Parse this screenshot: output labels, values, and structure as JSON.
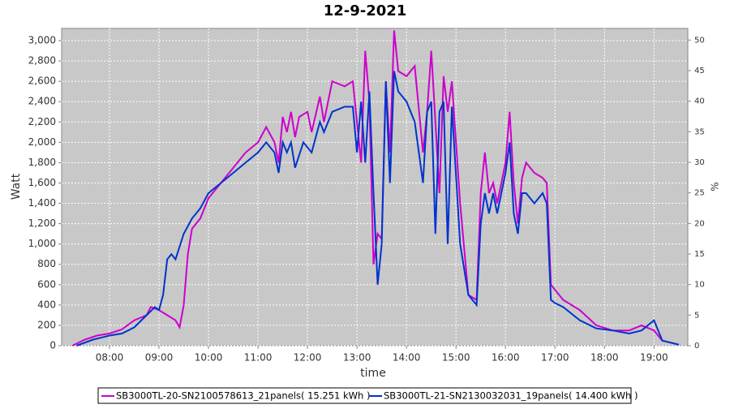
{
  "chart_data": {
    "type": "line",
    "title": "12-9-2021",
    "xlabel": "time",
    "ylabel": "Watt",
    "y2label": "%",
    "xlim": [
      "07:02",
      "19:41"
    ],
    "xticks": [
      "08:00",
      "09:00",
      "10:00",
      "11:00",
      "12:00",
      "13:00",
      "14:00",
      "15:00",
      "16:00",
      "17:00",
      "18:00",
      "19:00"
    ],
    "ylim": [
      0,
      3120
    ],
    "yticks": [
      0,
      200,
      400,
      600,
      800,
      {
        "value": 1000,
        "label": "1,000"
      },
      {
        "value": 1200,
        "label": "1,200"
      },
      {
        "value": 1400,
        "label": "1,400"
      },
      {
        "value": 1600,
        "label": "1,600"
      },
      {
        "value": 1800,
        "label": "1,800"
      },
      {
        "value": 2000,
        "label": "2,000"
      },
      {
        "value": 2200,
        "label": "2,200"
      },
      {
        "value": 2400,
        "label": "2,400"
      },
      {
        "value": 2600,
        "label": "2,600"
      },
      {
        "value": 2800,
        "label": "2,800"
      },
      {
        "value": 3000,
        "label": "3,000"
      }
    ],
    "y2lim": [
      0,
      51.9
    ],
    "y2ticks": [
      0,
      5,
      10,
      15,
      20,
      25,
      30,
      35,
      40,
      45,
      50
    ],
    "grid": true,
    "legend": "bottom",
    "series": [
      {
        "name": "SB3000TL-20-SN2100578613_21panels( 15.251 kWh )",
        "color": "#cc00cc",
        "x": [
          "07:15",
          "07:30",
          "07:45",
          "08:00",
          "08:15",
          "08:30",
          "08:45",
          "08:50",
          "09:00",
          "09:10",
          "09:20",
          "09:25",
          "09:30",
          "09:35",
          "09:40",
          "09:50",
          "10:00",
          "10:15",
          "10:30",
          "10:45",
          "11:00",
          "11:10",
          "11:20",
          "11:25",
          "11:30",
          "11:35",
          "11:40",
          "11:45",
          "11:50",
          "12:00",
          "12:05",
          "12:15",
          "12:20",
          "12:30",
          "12:45",
          "12:55",
          "13:00",
          "13:05",
          "13:10",
          "13:15",
          "13:20",
          "13:25",
          "13:30",
          "13:35",
          "13:40",
          "13:45",
          "13:50",
          "14:00",
          "14:10",
          "14:20",
          "14:25",
          "14:30",
          "14:35",
          "14:40",
          "14:45",
          "14:50",
          "14:55",
          "15:05",
          "15:15",
          "15:25",
          "15:30",
          "15:35",
          "15:40",
          "15:45",
          "15:50",
          "16:00",
          "16:05",
          "16:10",
          "16:15",
          "16:20",
          "16:25",
          "16:35",
          "16:45",
          "16:50",
          "16:55",
          "17:00",
          "17:10",
          "17:30",
          "17:50",
          "18:10",
          "18:30",
          "18:45",
          "19:00",
          "19:10",
          "19:30"
        ],
        "values": [
          0,
          60,
          100,
          120,
          160,
          250,
          300,
          380,
          350,
          300,
          250,
          180,
          400,
          900,
          1150,
          1250,
          1450,
          1600,
          1750,
          1900,
          2000,
          2150,
          2000,
          1800,
          2250,
          2100,
          2300,
          2050,
          2250,
          2300,
          2100,
          2450,
          2200,
          2600,
          2550,
          2600,
          2200,
          1800,
          2900,
          2400,
          800,
          1100,
          1050,
          2600,
          1900,
          3100,
          2700,
          2650,
          2750,
          1900,
          2300,
          2900,
          2200,
          1500,
          2650,
          2300,
          2600,
          1400,
          500,
          450,
          1500,
          1900,
          1500,
          1600,
          1400,
          1800,
          2300,
          1600,
          1200,
          1650,
          1800,
          1700,
          1650,
          1600,
          600,
          550,
          450,
          350,
          200,
          150,
          150,
          200,
          150,
          50,
          10
        ]
      },
      {
        "name": "SB3000TL-21-SN2130032031_19panels( 14.400 kWh )",
        "color": "#0033cc",
        "x": [
          "07:20",
          "07:40",
          "08:00",
          "08:15",
          "08:30",
          "08:45",
          "08:55",
          "09:00",
          "09:05",
          "09:10",
          "09:15",
          "09:20",
          "09:30",
          "09:40",
          "09:50",
          "10:00",
          "10:15",
          "10:30",
          "10:45",
          "11:00",
          "11:10",
          "11:20",
          "11:25",
          "11:30",
          "11:35",
          "11:40",
          "11:45",
          "11:55",
          "12:05",
          "12:15",
          "12:20",
          "12:30",
          "12:45",
          "12:55",
          "13:00",
          "13:05",
          "13:10",
          "13:15",
          "13:20",
          "13:25",
          "13:30",
          "13:35",
          "13:40",
          "13:45",
          "13:50",
          "14:00",
          "14:10",
          "14:20",
          "14:25",
          "14:30",
          "14:35",
          "14:40",
          "14:45",
          "14:50",
          "14:55",
          "15:05",
          "15:15",
          "15:25",
          "15:30",
          "15:35",
          "15:40",
          "15:45",
          "15:50",
          "16:00",
          "16:05",
          "16:10",
          "16:15",
          "16:20",
          "16:25",
          "16:35",
          "16:45",
          "16:50",
          "16:55",
          "17:00",
          "17:10",
          "17:30",
          "17:50",
          "18:10",
          "18:30",
          "18:45",
          "19:00",
          "19:10",
          "19:30"
        ],
        "values": [
          0,
          60,
          100,
          120,
          180,
          300,
          380,
          350,
          500,
          850,
          900,
          850,
          1100,
          1250,
          1350,
          1500,
          1600,
          1700,
          1800,
          1900,
          2000,
          1900,
          1700,
          2000,
          1900,
          2000,
          1750,
          2000,
          1900,
          2200,
          2100,
          2300,
          2350,
          2350,
          1900,
          2400,
          1800,
          2500,
          1500,
          600,
          1000,
          2600,
          1600,
          2700,
          2500,
          2400,
          2200,
          1600,
          2300,
          2400,
          1100,
          2300,
          2400,
          1000,
          2350,
          1000,
          500,
          400,
          1200,
          1500,
          1300,
          1500,
          1300,
          1700,
          2000,
          1300,
          1100,
          1500,
          1500,
          1400,
          1500,
          1400,
          450,
          420,
          380,
          250,
          170,
          150,
          120,
          150,
          250,
          50,
          10
        ]
      }
    ]
  }
}
